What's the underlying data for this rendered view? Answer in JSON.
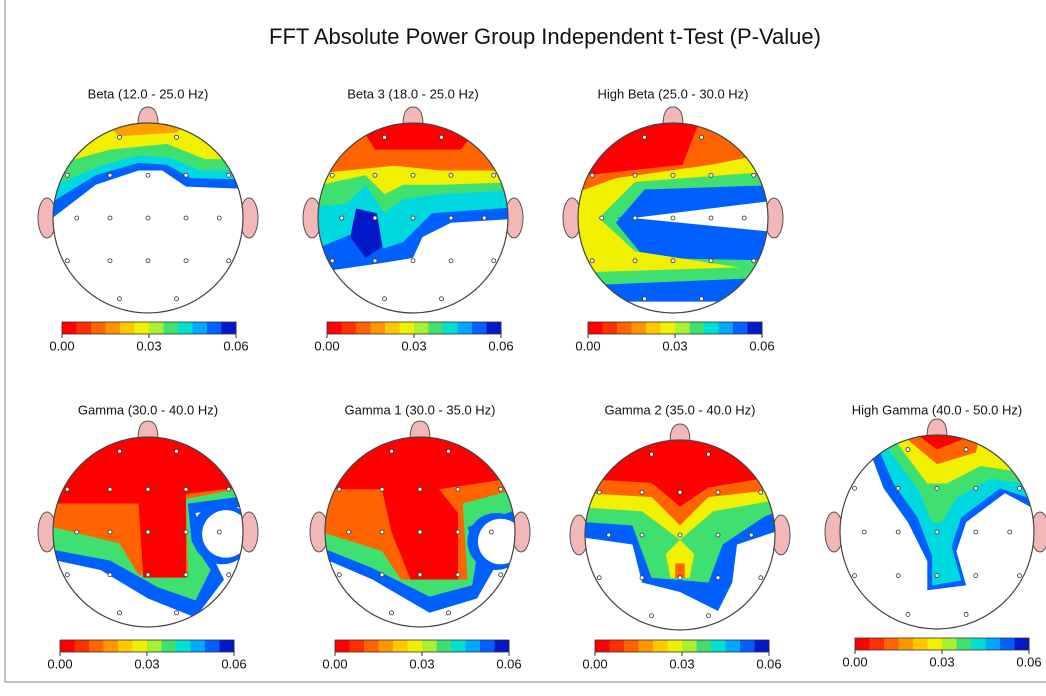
{
  "title": "FFT Absolute Power Group Independent t-Test  (P-Value)",
  "colorbar": {
    "colors": [
      "#ff0000",
      "#ff3000",
      "#ff6400",
      "#ff9600",
      "#ffc800",
      "#f0f000",
      "#a8f030",
      "#40e070",
      "#00e0d0",
      "#00a8ff",
      "#0060ff",
      "#0018c8"
    ],
    "lim": [
      0,
      0.06
    ],
    "ticks": [
      {
        "value": 0,
        "label": "0.00"
      },
      {
        "value": 0.03,
        "label": "0.03"
      },
      {
        "value": 0.06,
        "label": "0.06"
      }
    ]
  },
  "maps": [
    {
      "label": "Beta (12.0 - 25.0 Hz)"
    },
    {
      "label": "Beta 3 (18.0 - 25.0 Hz)"
    },
    {
      "label": "High Beta (25.0 - 30.0 Hz)"
    },
    {
      "label": "Gamma (30.0 - 40.0 Hz)"
    },
    {
      "label": "Gamma 1 (30.0 - 35.0 Hz)"
    },
    {
      "label": "Gamma 2 (35.0 - 40.0 Hz)"
    },
    {
      "label": "High Gamma (40.0 - 50.0 Hz)"
    }
  ]
}
